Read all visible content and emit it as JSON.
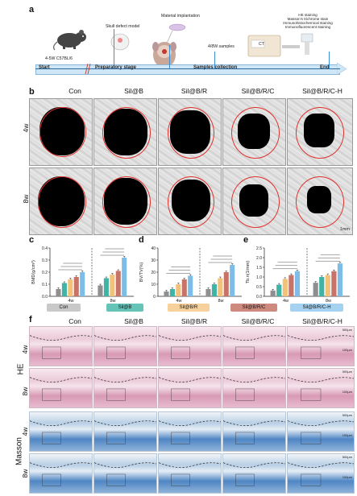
{
  "panel_labels": {
    "a": "a",
    "b": "b",
    "c": "c",
    "d": "d",
    "e": "e",
    "f": "f"
  },
  "timeline": {
    "mouse_label": "4-5W C57BL/6",
    "stage1": "Skull defect model",
    "stage2": "Material implantation",
    "stage3": "4/8W samples",
    "assays": [
      "HE staining",
      "Masson's trichrome stain",
      "Immunohistochemical staining",
      "Immunofluorescent staining"
    ],
    "ct_label": "CT",
    "start": "Start",
    "prep": "Preparatory stage",
    "collect": "Samples collection",
    "end": "End"
  },
  "groups": [
    "Con",
    "Sil@B",
    "Sil@B/R",
    "Sil@B/R/C",
    "Sil@B/R/C-H"
  ],
  "timepoints": [
    "4w",
    "8w"
  ],
  "scale_label": "1mm",
  "he_label": "HE",
  "masson_label": "Masson",
  "scale_small": "500µm",
  "scale_tiny": "100µm",
  "colors": {
    "Con": "#8f8f8f",
    "Sil@B": "#3fb3a6",
    "Sil@B/R": "#f2c27a",
    "Sil@B/R/C": "#c77367",
    "Sil@B/R/C-H": "#7dbde8"
  },
  "chart_data": [
    {
      "type": "bar",
      "ylabel": "BMD(g/cm³)",
      "ylim": [
        0,
        0.4
      ],
      "yticks": [
        "0.0",
        "0.1",
        "0.2",
        "0.3",
        "0.4"
      ],
      "categories": [
        "4w",
        "8w"
      ],
      "series": [
        {
          "name": "Con",
          "values": [
            0.06,
            0.09
          ]
        },
        {
          "name": "Sil@B",
          "values": [
            0.11,
            0.15
          ]
        },
        {
          "name": "Sil@B/R",
          "values": [
            0.14,
            0.18
          ]
        },
        {
          "name": "Sil@B/R/C",
          "values": [
            0.16,
            0.21
          ]
        },
        {
          "name": "Sil@B/R/C-H",
          "values": [
            0.2,
            0.32
          ]
        }
      ]
    },
    {
      "type": "bar",
      "ylabel": "BV/TV(%)",
      "ylim": [
        0,
        40
      ],
      "yticks": [
        "0",
        "10",
        "20",
        "30",
        "40"
      ],
      "categories": [
        "4w",
        "8w"
      ],
      "series": [
        {
          "name": "Con",
          "values": [
            4,
            6
          ]
        },
        {
          "name": "Sil@B",
          "values": [
            6,
            10
          ]
        },
        {
          "name": "Sil@B/R",
          "values": [
            10,
            15
          ]
        },
        {
          "name": "Sil@B/R/C",
          "values": [
            14,
            20
          ]
        },
        {
          "name": "Sil@B/R/C-H",
          "values": [
            17,
            26
          ]
        }
      ]
    },
    {
      "type": "bar",
      "ylabel": "Tb.n(1/mm)",
      "ylim": [
        0,
        2.5
      ],
      "yticks": [
        "0.0",
        "0.5",
        "1.0",
        "1.5",
        "2.0",
        "2.5"
      ],
      "categories": [
        "4w",
        "8w"
      ],
      "series": [
        {
          "name": "Con",
          "values": [
            0.3,
            0.7
          ]
        },
        {
          "name": "Sil@B",
          "values": [
            0.6,
            1.0
          ]
        },
        {
          "name": "Sil@B/R",
          "values": [
            0.9,
            1.1
          ]
        },
        {
          "name": "Sil@B/R/C",
          "values": [
            1.1,
            1.3
          ]
        },
        {
          "name": "Sil@B/R/C-H",
          "values": [
            1.3,
            1.7
          ]
        }
      ]
    }
  ]
}
